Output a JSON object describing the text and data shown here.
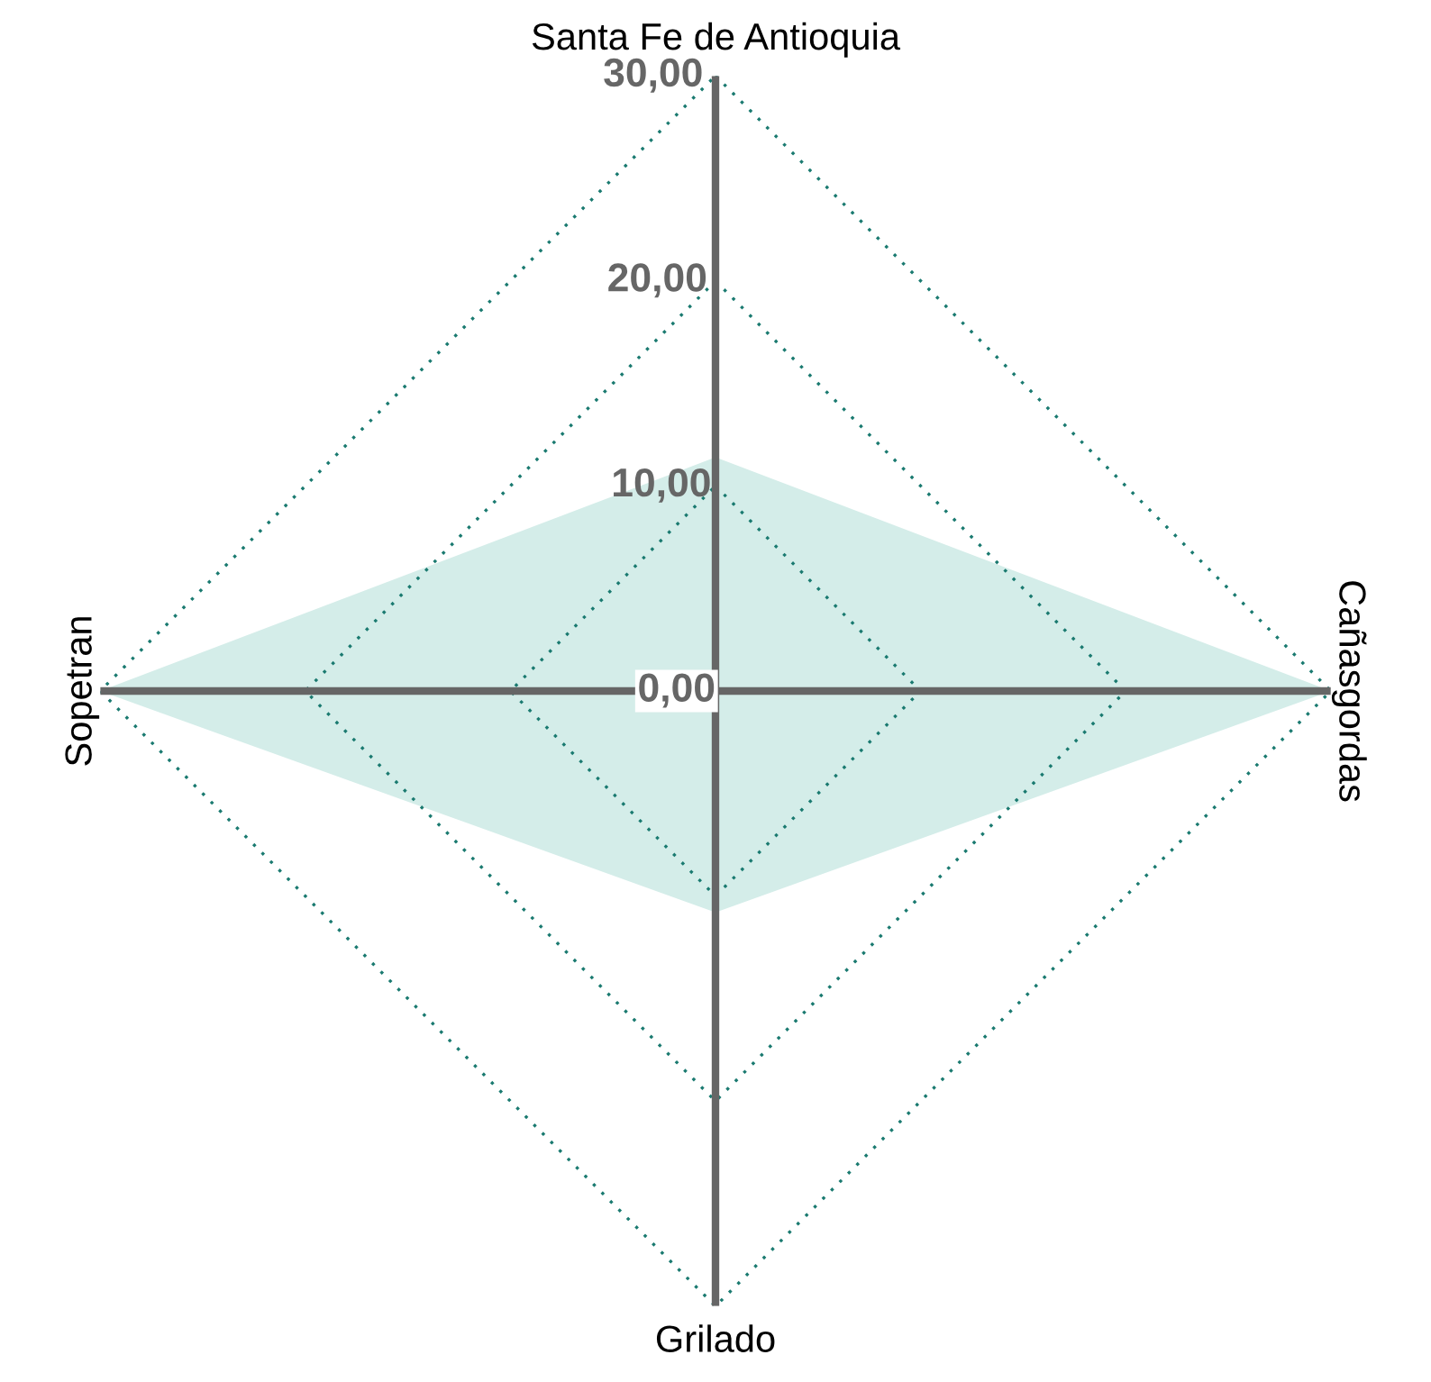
{
  "chart_data": {
    "type": "radar",
    "categories": [
      "Santa Fe de Antioquia",
      "Cañasgordas",
      "Grilado",
      "Sopetran"
    ],
    "series": [
      {
        "color": "#d4ede9",
        "values": [
          11.4,
          30,
          10.8,
          30
        ]
      }
    ],
    "ylim": [
      0,
      30
    ],
    "yticks": [
      {
        "value": 0,
        "label": "0,00"
      },
      {
        "value": 10,
        "label": "10,00"
      },
      {
        "value": 20,
        "label": "20,00"
      },
      {
        "value": 30,
        "label": "30,00"
      }
    ],
    "grid": true
  }
}
